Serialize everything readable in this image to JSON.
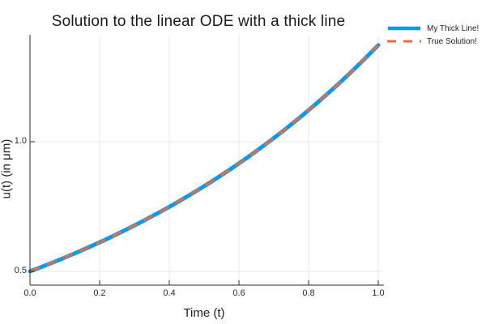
{
  "figure": {
    "background": "#ffffff",
    "axis_color": "#2b2b2b",
    "grid_color": "#e8e8e8"
  },
  "chart_data": {
    "type": "line",
    "title": "Solution to the linear ODE with a thick line",
    "xlabel": "Time (t)",
    "ylabel": "u(t) (in μm)",
    "xlim": [
      0.0,
      1.0
    ],
    "ylim": [
      0.447,
      1.413
    ],
    "grid": true,
    "legend_position": "outer-top-right",
    "xtick_labels": [
      "0.0",
      "0.2",
      "0.4",
      "0.6",
      "0.8",
      "1.0"
    ],
    "xtick_values": [
      0.0,
      0.2,
      0.4,
      0.6,
      0.8,
      1.0
    ],
    "ytick_labels": [
      "0.5",
      "1.0"
    ],
    "ytick_values": [
      0.5,
      1.0
    ],
    "x": [
      0.0,
      0.1,
      0.2,
      0.3,
      0.4,
      0.5,
      0.6,
      0.7,
      0.8,
      0.9,
      1.0
    ],
    "series": [
      {
        "name": "My Thick Line!",
        "color": "#009AF9",
        "linestyle": "solid",
        "linewidth": 5,
        "values": [
          0.5,
          0.5531,
          0.6119,
          0.677,
          0.7489,
          0.8285,
          0.9166,
          1.014,
          1.1218,
          1.241,
          1.3729
        ]
      },
      {
        "name": "True Solution!",
        "color": "#E26E46",
        "linestyle": "dash",
        "linewidth": 3,
        "values": [
          0.5,
          0.5531,
          0.6119,
          0.677,
          0.7489,
          0.8285,
          0.9166,
          1.014,
          1.1218,
          1.241,
          1.3729
        ]
      }
    ]
  }
}
